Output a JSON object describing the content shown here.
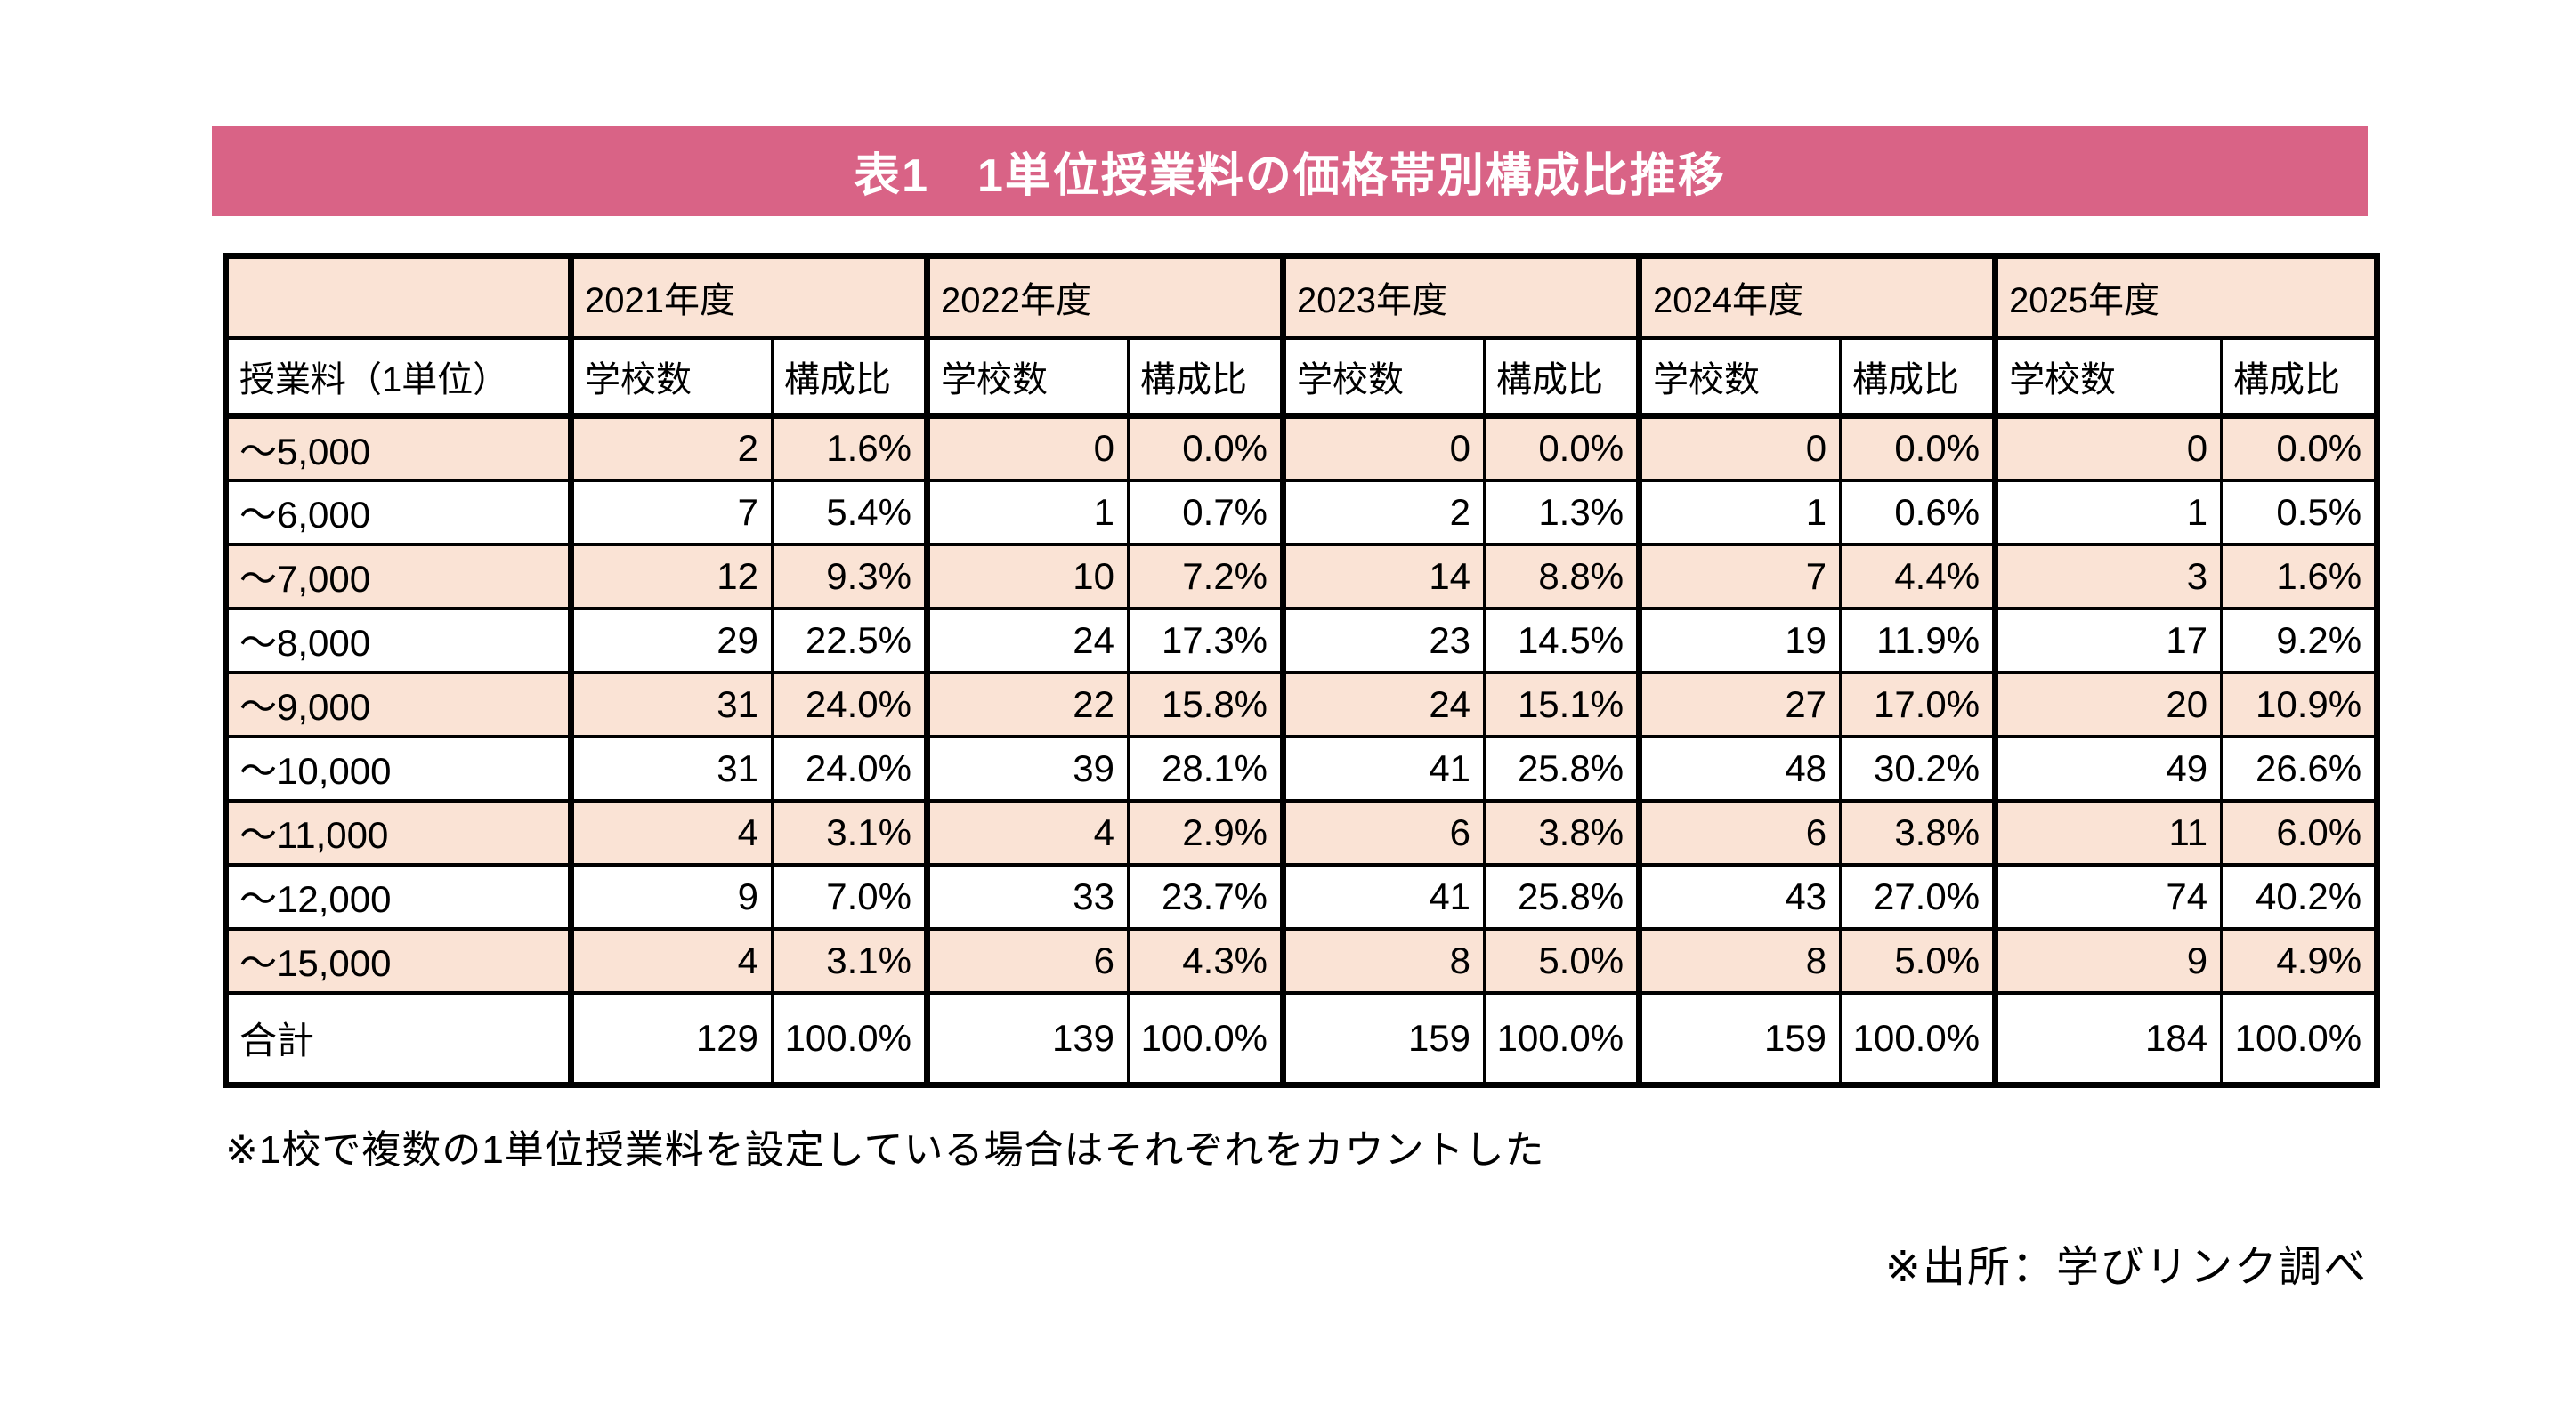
{
  "colors": {
    "banner": "#D96386",
    "accent_row": "#FAE3D5",
    "border": "#000000",
    "title_text": "#FFFFFF"
  },
  "chart_data": {
    "type": "table",
    "title": "表1　1単位授業料の価格帯別構成比推移",
    "corner_label": "授業料（1単位）",
    "year_headers": [
      "2021年度",
      "2022年度",
      "2023年度",
      "2024年度",
      "2025年度"
    ],
    "sub_headers": [
      "学校数",
      "構成比"
    ],
    "rows": [
      {
        "label": "～5,000",
        "cells": [
          "2",
          "1.6%",
          "0",
          "0.0%",
          "0",
          "0.0%",
          "0",
          "0.0%",
          "0",
          "0.0%"
        ]
      },
      {
        "label": "～6,000",
        "cells": [
          "7",
          "5.4%",
          "1",
          "0.7%",
          "2",
          "1.3%",
          "1",
          "0.6%",
          "1",
          "0.5%"
        ]
      },
      {
        "label": "～7,000",
        "cells": [
          "12",
          "9.3%",
          "10",
          "7.2%",
          "14",
          "8.8%",
          "7",
          "4.4%",
          "3",
          "1.6%"
        ]
      },
      {
        "label": "～8,000",
        "cells": [
          "29",
          "22.5%",
          "24",
          "17.3%",
          "23",
          "14.5%",
          "19",
          "11.9%",
          "17",
          "9.2%"
        ]
      },
      {
        "label": "～9,000",
        "cells": [
          "31",
          "24.0%",
          "22",
          "15.8%",
          "24",
          "15.1%",
          "27",
          "17.0%",
          "20",
          "10.9%"
        ]
      },
      {
        "label": "～10,000",
        "cells": [
          "31",
          "24.0%",
          "39",
          "28.1%",
          "41",
          "25.8%",
          "48",
          "30.2%",
          "49",
          "26.6%"
        ]
      },
      {
        "label": "～11,000",
        "cells": [
          "4",
          "3.1%",
          "4",
          "2.9%",
          "6",
          "3.8%",
          "6",
          "3.8%",
          "11",
          "6.0%"
        ]
      },
      {
        "label": "～12,000",
        "cells": [
          "9",
          "7.0%",
          "33",
          "23.7%",
          "41",
          "25.8%",
          "43",
          "27.0%",
          "74",
          "40.2%"
        ]
      },
      {
        "label": "～15,000",
        "cells": [
          "4",
          "3.1%",
          "6",
          "4.3%",
          "8",
          "5.0%",
          "8",
          "5.0%",
          "9",
          "4.9%"
        ]
      }
    ],
    "total_row": {
      "label": "合計",
      "cells": [
        "129",
        "100.0%",
        "139",
        "100.0%",
        "159",
        "100.0%",
        "159",
        "100.0%",
        "184",
        "100.0%"
      ]
    }
  },
  "notes": {
    "footnote": "※1校で複数の1単位授業料を設定している場合はそれぞれをカウントした",
    "source": "※出所：学びリンク調べ"
  }
}
